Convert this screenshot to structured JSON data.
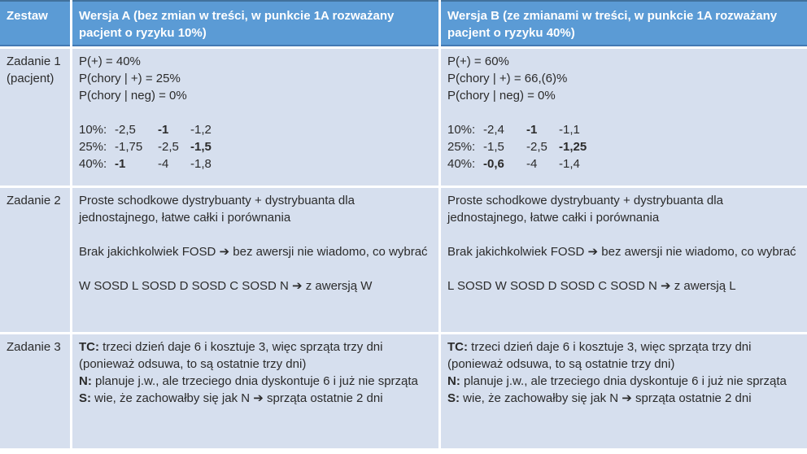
{
  "colors": {
    "header_bg": "#5b9bd5",
    "header_text": "#ffffff",
    "header_top_border": "#41719c",
    "cell_bg": "#d6dfee",
    "body_text": "#2b2b2b",
    "separator": "#ffffff"
  },
  "header": {
    "zestaw": "Zestaw",
    "wersja_a": "Wersja A (bez zmian w treści, w punkcie 1A rozważany pacjent o ryzyku 10%)",
    "wersja_b": "Wersja B (ze zmianami w treści, w punkcie 1A rozważany pacjent o ryzyku 40%)"
  },
  "rows": {
    "zadanie1": {
      "label": "Zadanie 1\n(pacjent)",
      "a": {
        "probs": [
          "P(+) = 40%",
          "P(chory | +) = 25%",
          "P(chory | neg) = 0%"
        ],
        "dist": [
          {
            "label": "10%:",
            "v": [
              "-2,5",
              "**-1**",
              "-1,2"
            ]
          },
          {
            "label": "25%:",
            "v": [
              "-1,75",
              "-2,5",
              "**-1,5**"
            ]
          },
          {
            "label": "40%:",
            "v": [
              "**-1**",
              "-4",
              "-1,8"
            ]
          }
        ]
      },
      "b": {
        "probs": [
          "P(+) = 60%",
          "P(chory | +) = 66,(6)%",
          "P(chory | neg) = 0%"
        ],
        "dist": [
          {
            "label": "10%:",
            "v": [
              "-2,4",
              "**-1**",
              "-1,1"
            ]
          },
          {
            "label": "25%:",
            "v": [
              "-1,5",
              "-2,5",
              "**-1,25**"
            ]
          },
          {
            "label": "40%:",
            "v": [
              "**-0,6**",
              "-4",
              "-1,4"
            ]
          }
        ]
      }
    },
    "zadanie2": {
      "label": "Zadanie 2",
      "a": {
        "paras": [
          "Proste schodkowe dystrybuanty + dystrybuanta dla jednostajnego, łatwe całki i porównania",
          "Brak jakichkolwiek FOSD ➔ bez awersji nie wiadomo, co wybrać",
          "W SOSD L SOSD D SOSD C SOSD N ➔ z awersją W"
        ]
      },
      "b": {
        "paras": [
          "Proste schodkowe dystrybuanty + dystrybuanta dla jednostajnego, łatwe całki i porównania",
          "Brak jakichkolwiek FOSD ➔ bez awersji nie wiadomo, co wybrać",
          "L SOSD W SOSD D SOSD C SOSD N ➔ z awersją L"
        ]
      }
    },
    "zadanie3": {
      "label": "Zadanie 3",
      "a": {
        "lines": [
          "**TC:** trzeci dzień daje 6 i kosztuje 3, więc sprząta trzy dni (ponieważ odsuwa, to są ostatnie trzy dni)",
          "**N:** planuje j.w., ale trzeciego dnia dyskontuje 6 i już nie sprząta",
          "**S:** wie, że zachowałby się jak N ➔ sprząta ostatnie 2 dni"
        ]
      },
      "b": {
        "lines": [
          "**TC:** trzeci dzień daje 6 i kosztuje 3, więc sprząta trzy dni (ponieważ odsuwa, to są ostatnie trzy dni)",
          "**N:** planuje j.w., ale trzeciego dnia dyskontuje 6 i już nie sprząta",
          "**S:** wie, że zachowałby się jak N ➔ sprząta ostatnie 2 dni"
        ]
      }
    }
  }
}
